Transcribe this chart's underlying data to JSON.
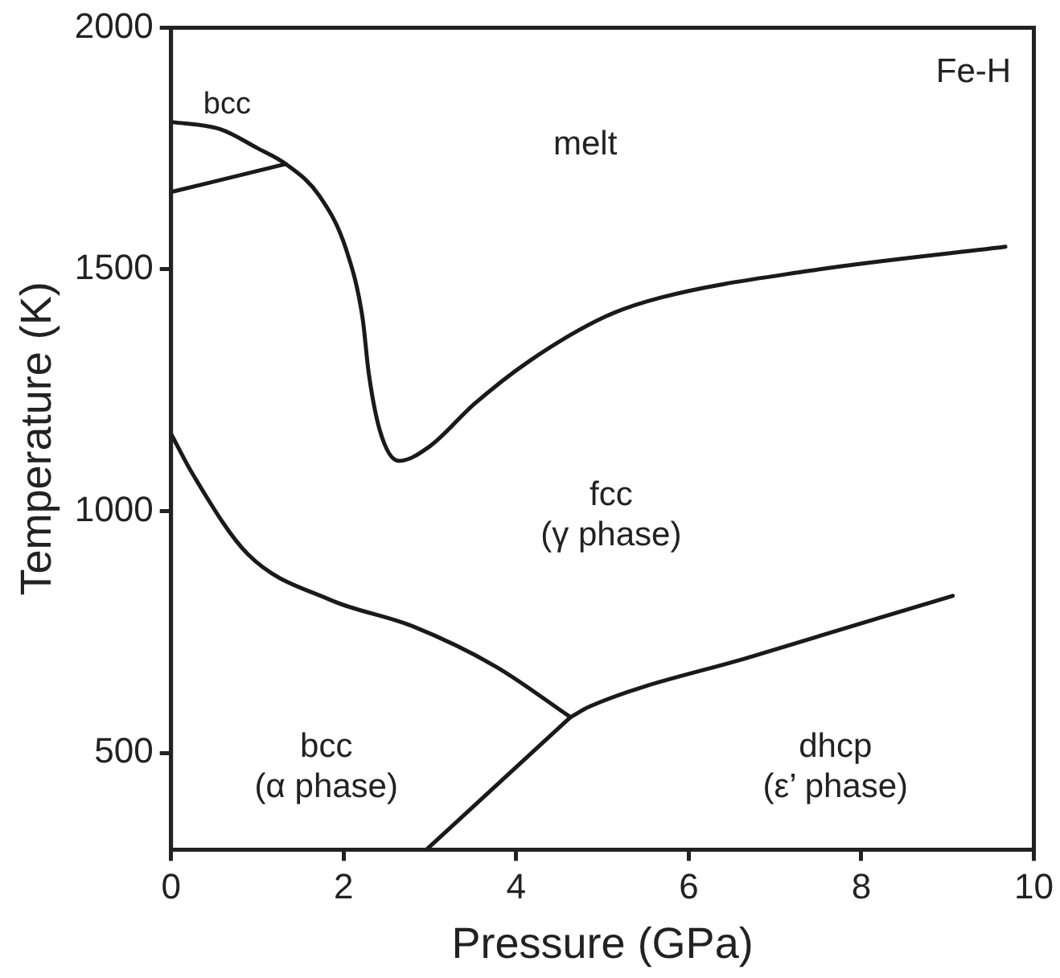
{
  "chart_data": {
    "type": "line",
    "xlabel": "Pressure (GPa)",
    "ylabel": "Temperature (K)",
    "xlim": [
      0,
      10
    ],
    "ylim": [
      300,
      2000
    ],
    "xticks": [
      0,
      2,
      4,
      6,
      8,
      10
    ],
    "yticks": [
      500,
      1000,
      1500,
      2000
    ],
    "grid": false,
    "legend": false,
    "marker": "none",
    "line_style": "solid",
    "series": [
      {
        "color": "#1a1a1a",
        "x": [
          0,
          0.57,
          1.0,
          1.33,
          1.72,
          2.03,
          2.22,
          2.29,
          2.42,
          2.64,
          2.99,
          3.51,
          4.14,
          5.04,
          5.68,
          7.39,
          9.67
        ],
        "values": [
          1805,
          1790,
          1751,
          1718,
          1652,
          1541,
          1399,
          1287,
          1167,
          1104,
          1133,
          1221,
          1309,
          1403,
          1442,
          1497,
          1547
        ]
      },
      {
        "color": "#1a1a1a",
        "x": [
          0,
          1.33
        ],
        "values": [
          1660,
          1718
        ]
      },
      {
        "color": "#1a1a1a",
        "x": [
          0,
          0.25,
          0.89,
          1.84,
          2.8,
          3.76,
          4.63
        ],
        "values": [
          1160,
          1077,
          911,
          817,
          762,
          679,
          574
        ]
      },
      {
        "color": "#1a1a1a",
        "x": [
          4.63,
          4.85,
          6.76,
          9.06
        ],
        "values": [
          574,
          596,
          701,
          825
        ]
      },
      {
        "color": "#1a1a1a",
        "x": [
          2.96,
          4.63
        ],
        "values": [
          300,
          574
        ]
      }
    ],
    "annotations": [
      "Fe-H",
      "melt",
      "bcc",
      "fcc\n(γ phase)",
      "bcc\n(α phase)",
      "dhcp\n(ε’ phase)"
    ]
  }
}
